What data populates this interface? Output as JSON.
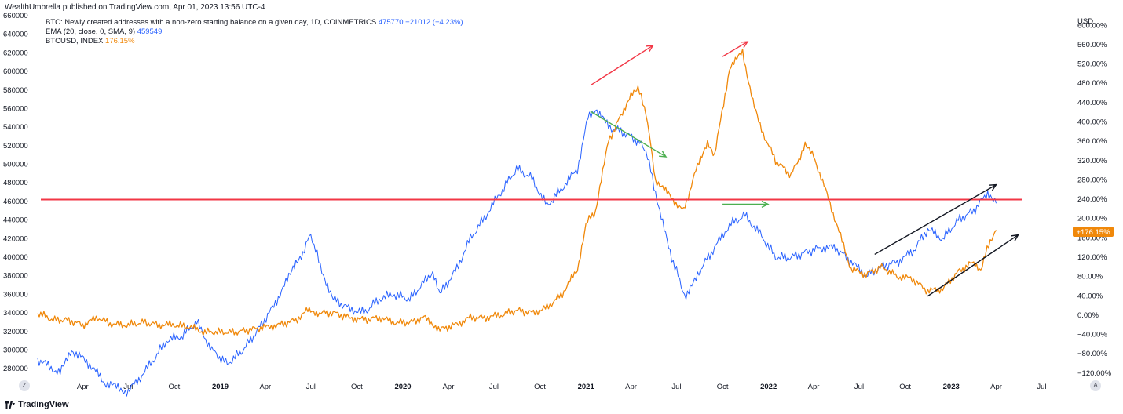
{
  "publisher_line": "WealthUmbrella published on TradingView.com, Apr 01, 2023 13:56 UTC-4",
  "legend": {
    "row1_label": "BTC: Newly created addresses with a non-zero starting balance on a given day, 1D, COINMETRICS",
    "row1_value": "475770",
    "row1_change": "−21012 (−4.23%)",
    "row2_label": "EMA (20, close, 0, SMA, 9)",
    "row2_value": "459549",
    "row3_label": "BTCUSD, INDEX",
    "row3_value": "176.15%"
  },
  "right_axis_unit": "USD",
  "price_badge": "+176.15%",
  "footer_brand": "TradingView",
  "corner_left": "Z",
  "corner_right": "A",
  "colors": {
    "addresses": "#2962ff",
    "btcusd": "#f0880a",
    "support_line": "#f23645",
    "up_arrow_red": "#f23645",
    "down_arrow_green": "#4caf50",
    "trend_arrow_black": "#131722"
  },
  "chart_data": {
    "type": "line",
    "x_ticks": [
      "Apr",
      "Jul",
      "Oct",
      "2019",
      "Apr",
      "Jul",
      "Oct",
      "2020",
      "Apr",
      "Jul",
      "Oct",
      "2021",
      "Apr",
      "Jul",
      "Oct",
      "2022",
      "Apr",
      "Jul",
      "Oct",
      "2023",
      "Apr",
      "Jul"
    ],
    "x_tick_dates": [
      "2018-04-01",
      "2018-07-01",
      "2018-10-01",
      "2019-01-01",
      "2019-04-01",
      "2019-07-01",
      "2019-10-01",
      "2020-01-01",
      "2020-04-01",
      "2020-07-01",
      "2020-10-01",
      "2021-01-01",
      "2021-04-01",
      "2021-07-01",
      "2021-10-01",
      "2022-01-01",
      "2022-04-01",
      "2022-07-01",
      "2022-10-01",
      "2023-01-01",
      "2023-04-01",
      "2023-07-01"
    ],
    "x_range": [
      "2018-01-01",
      "2023-09-01"
    ],
    "left_axis": {
      "ylim": [
        270000,
        660000
      ],
      "ticks": [
        "280000",
        "300000",
        "320000",
        "340000",
        "360000",
        "380000",
        "400000",
        "420000",
        "440000",
        "460000",
        "480000",
        "500000",
        "520000",
        "540000",
        "560000",
        "580000",
        "600000",
        "620000",
        "640000",
        "660000"
      ]
    },
    "right_axis": {
      "unit": "USD",
      "ylim": [
        -130,
        620
      ],
      "ticks": [
        "−120.00%",
        "−80.00%",
        "−40.00%",
        "0.00%",
        "40.00%",
        "80.00%",
        "120.00%",
        "160.00%",
        "200.00%",
        "240.00%",
        "280.00%",
        "320.00%",
        "360.00%",
        "400.00%",
        "440.00%",
        "480.00%",
        "520.00%",
        "560.00%",
        "600.00%"
      ]
    },
    "series": [
      {
        "axis": "left",
        "points": [
          [
            "2018-01-01",
            290000
          ],
          [
            "2018-02-15",
            275000
          ],
          [
            "2018-03-10",
            300000
          ],
          [
            "2018-04-15",
            285000
          ],
          [
            "2018-05-15",
            265000
          ],
          [
            "2018-07-01",
            255000
          ],
          [
            "2018-08-15",
            285000
          ],
          [
            "2018-09-15",
            310000
          ],
          [
            "2018-10-15",
            315000
          ],
          [
            "2018-11-15",
            330000
          ],
          [
            "2018-12-15",
            300000
          ],
          [
            "2019-01-15",
            285000
          ],
          [
            "2019-02-15",
            300000
          ],
          [
            "2019-03-15",
            320000
          ],
          [
            "2019-04-15",
            345000
          ],
          [
            "2019-05-15",
            375000
          ],
          [
            "2019-06-01",
            395000
          ],
          [
            "2019-06-15",
            405000
          ],
          [
            "2019-07-01",
            425000
          ],
          [
            "2019-07-20",
            390000
          ],
          [
            "2019-08-15",
            355000
          ],
          [
            "2019-09-15",
            345000
          ],
          [
            "2019-10-15",
            340000
          ],
          [
            "2019-11-15",
            355000
          ],
          [
            "2019-12-15",
            360000
          ],
          [
            "2020-01-15",
            355000
          ],
          [
            "2020-02-15",
            375000
          ],
          [
            "2020-03-01",
            385000
          ],
          [
            "2020-03-15",
            360000
          ],
          [
            "2020-04-15",
            385000
          ],
          [
            "2020-05-15",
            420000
          ],
          [
            "2020-06-15",
            445000
          ],
          [
            "2020-07-15",
            470000
          ],
          [
            "2020-08-15",
            495000
          ],
          [
            "2020-09-15",
            485000
          ],
          [
            "2020-10-15",
            455000
          ],
          [
            "2020-11-15",
            475000
          ],
          [
            "2020-12-15",
            495000
          ],
          [
            "2021-01-05",
            550000
          ],
          [
            "2021-01-20",
            560000
          ],
          [
            "2021-02-15",
            540000
          ],
          [
            "2021-03-15",
            535000
          ],
          [
            "2021-04-15",
            525000
          ],
          [
            "2021-05-01",
            515000
          ],
          [
            "2021-05-20",
            470000
          ],
          [
            "2021-06-15",
            410000
          ],
          [
            "2021-07-01",
            385000
          ],
          [
            "2021-07-20",
            355000
          ],
          [
            "2021-08-15",
            385000
          ],
          [
            "2021-09-15",
            410000
          ],
          [
            "2021-10-15",
            435000
          ],
          [
            "2021-11-15",
            445000
          ],
          [
            "2021-12-15",
            425000
          ],
          [
            "2022-01-15",
            400000
          ],
          [
            "2022-02-15",
            400000
          ],
          [
            "2022-03-15",
            405000
          ],
          [
            "2022-04-15",
            410000
          ],
          [
            "2022-05-15",
            410000
          ],
          [
            "2022-06-15",
            395000
          ],
          [
            "2022-07-15",
            380000
          ],
          [
            "2022-08-15",
            390000
          ],
          [
            "2022-09-15",
            395000
          ],
          [
            "2022-10-15",
            405000
          ],
          [
            "2022-11-15",
            430000
          ],
          [
            "2022-12-15",
            420000
          ],
          [
            "2023-01-15",
            440000
          ],
          [
            "2023-02-15",
            450000
          ],
          [
            "2023-03-15",
            470000
          ],
          [
            "2023-04-01",
            458000
          ]
        ]
      },
      {
        "axis": "right",
        "points": [
          [
            "2018-01-01",
            5
          ],
          [
            "2018-02-01",
            -10
          ],
          [
            "2018-03-01",
            -10
          ],
          [
            "2018-04-01",
            -20
          ],
          [
            "2018-05-01",
            -5
          ],
          [
            "2018-06-01",
            -20
          ],
          [
            "2018-07-01",
            -20
          ],
          [
            "2018-08-01",
            -15
          ],
          [
            "2018-09-01",
            -20
          ],
          [
            "2018-10-01",
            -20
          ],
          [
            "2018-11-01",
            -25
          ],
          [
            "2018-12-01",
            -35
          ],
          [
            "2019-01-01",
            -35
          ],
          [
            "2019-02-01",
            -35
          ],
          [
            "2019-03-01",
            -30
          ],
          [
            "2019-04-01",
            -25
          ],
          [
            "2019-05-01",
            -20
          ],
          [
            "2019-06-01",
            -10
          ],
          [
            "2019-06-25",
            10
          ],
          [
            "2019-07-15",
            5
          ],
          [
            "2019-08-15",
            5
          ],
          [
            "2019-09-15",
            -5
          ],
          [
            "2019-10-15",
            -10
          ],
          [
            "2019-11-15",
            -5
          ],
          [
            "2019-12-15",
            -15
          ],
          [
            "2020-01-15",
            -15
          ],
          [
            "2020-02-15",
            -5
          ],
          [
            "2020-03-15",
            -30
          ],
          [
            "2020-04-15",
            -20
          ],
          [
            "2020-05-15",
            -5
          ],
          [
            "2020-06-15",
            -5
          ],
          [
            "2020-07-15",
            0
          ],
          [
            "2020-08-15",
            10
          ],
          [
            "2020-09-15",
            5
          ],
          [
            "2020-10-15",
            15
          ],
          [
            "2020-11-15",
            45
          ],
          [
            "2020-12-15",
            95
          ],
          [
            "2021-01-01",
            190
          ],
          [
            "2021-01-20",
            215
          ],
          [
            "2021-02-15",
            360
          ],
          [
            "2021-03-15",
            420
          ],
          [
            "2021-04-01",
            460
          ],
          [
            "2021-04-15",
            470
          ],
          [
            "2021-05-01",
            420
          ],
          [
            "2021-05-20",
            280
          ],
          [
            "2021-06-15",
            250
          ],
          [
            "2021-07-15",
            215
          ],
          [
            "2021-08-15",
            320
          ],
          [
            "2021-09-01",
            360
          ],
          [
            "2021-09-15",
            330
          ],
          [
            "2021-10-15",
            510
          ],
          [
            "2021-11-10",
            545
          ],
          [
            "2021-12-01",
            440
          ],
          [
            "2021-12-15",
            390
          ],
          [
            "2022-01-15",
            320
          ],
          [
            "2022-02-15",
            290
          ],
          [
            "2022-03-15",
            350
          ],
          [
            "2022-04-01",
            330
          ],
          [
            "2022-05-01",
            240
          ],
          [
            "2022-06-15",
            95
          ],
          [
            "2022-07-15",
            85
          ],
          [
            "2022-08-15",
            100
          ],
          [
            "2022-09-15",
            80
          ],
          [
            "2022-10-15",
            75
          ],
          [
            "2022-11-15",
            50
          ],
          [
            "2022-12-15",
            55
          ],
          [
            "2023-01-15",
            90
          ],
          [
            "2023-02-15",
            110
          ],
          [
            "2023-03-01",
            95
          ],
          [
            "2023-03-20",
            155
          ],
          [
            "2023-04-01",
            176
          ]
        ]
      }
    ],
    "reference_lines": [
      {
        "axis": "left",
        "y": 462000
      }
    ],
    "annotations": [
      {
        "kind": "arrow",
        "color": "up_arrow_red",
        "from": [
          "2021-01-10",
          585000
        ],
        "to": [
          "2021-05-15",
          628000
        ]
      },
      {
        "kind": "arrow",
        "color": "up_arrow_red",
        "from": [
          "2021-10-01",
          616000
        ],
        "to": [
          "2021-11-20",
          632000
        ]
      },
      {
        "kind": "arrow",
        "color": "down_arrow_green",
        "from": [
          "2021-01-10",
          557000
        ],
        "to": [
          "2021-06-10",
          508000
        ]
      },
      {
        "kind": "arrow",
        "color": "down_arrow_green",
        "from": [
          "2021-10-01",
          457000
        ],
        "to": [
          "2021-12-31",
          457000
        ]
      },
      {
        "kind": "arrow",
        "color": "trend_arrow_black",
        "from": [
          "2022-08-01",
          403000
        ],
        "to": [
          "2023-04-01",
          478000
        ]
      },
      {
        "kind": "arrow",
        "color": "trend_arrow_black",
        "from": [
          "2022-11-15",
          358000
        ],
        "to": [
          "2023-05-15",
          424000
        ]
      }
    ]
  }
}
